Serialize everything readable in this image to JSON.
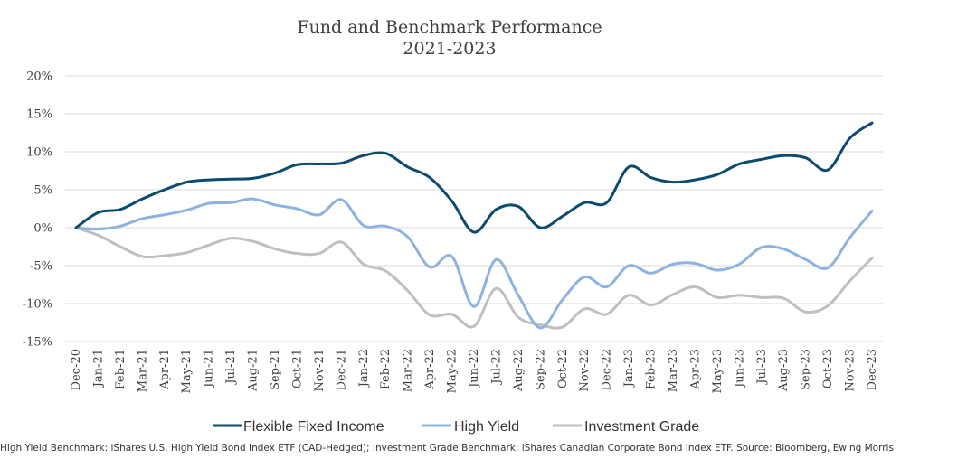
{
  "chart_data": {
    "type": "line",
    "title": "Fund and Benchmark Performance",
    "subtitle": "2021-2023",
    "xlabel": "",
    "ylabel": "",
    "ylim": [
      -15,
      20
    ],
    "y_ticks": [
      20,
      15,
      10,
      5,
      0,
      -5,
      -10,
      -15
    ],
    "y_tick_labels": [
      "20%",
      "15%",
      "10%",
      "5%",
      "0%",
      "-5%",
      "-10%",
      "-15%"
    ],
    "grid": true,
    "legend_position": "bottom",
    "categories": [
      "Dec-20",
      "Jan-21",
      "Feb-21",
      "Mar-21",
      "Apr-21",
      "May-21",
      "Jun-21",
      "Jul-21",
      "Aug-21",
      "Sep-21",
      "Oct-21",
      "Nov-21",
      "Dec-21",
      "Jan-22",
      "Feb-22",
      "Mar-22",
      "Apr-22",
      "May-22",
      "Jun-22",
      "Jul-22",
      "Aug-22",
      "Sep-22",
      "Oct-22",
      "Nov-22",
      "Dec-22",
      "Jan-23",
      "Feb-23",
      "Mar-23",
      "Apr-23",
      "May-23",
      "Jun-23",
      "Jul-23",
      "Aug-23",
      "Sep-23",
      "Oct-23",
      "Nov-23",
      "Dec-23"
    ],
    "series": [
      {
        "name": "Flexible Fixed Income",
        "color": "#0c4a6e",
        "values": [
          0,
          2.0,
          2.4,
          3.8,
          5.0,
          6.0,
          6.3,
          6.4,
          6.5,
          7.2,
          8.3,
          8.4,
          8.5,
          9.5,
          9.8,
          8.0,
          6.6,
          3.5,
          -0.6,
          2.4,
          2.8,
          0,
          1.5,
          3.3,
          3.3,
          8.0,
          6.6,
          6.0,
          6.3,
          7.0,
          8.4,
          9.0,
          9.5,
          9.2,
          7.6,
          11.8,
          13.8
        ]
      },
      {
        "name": "High Yield",
        "color": "#8cb3e0",
        "values": [
          0,
          -0.2,
          0.2,
          1.2,
          1.7,
          2.3,
          3.2,
          3.3,
          3.8,
          3.0,
          2.5,
          1.7,
          3.7,
          0.3,
          0.2,
          -1.2,
          -5.2,
          -3.8,
          -10.4,
          -4.2,
          -8.9,
          -13.2,
          -9.5,
          -6.5,
          -7.8,
          -5.0,
          -6.0,
          -4.8,
          -4.7,
          -5.6,
          -4.8,
          -2.6,
          -2.8,
          -4.2,
          -5.3,
          -1.3,
          2.2
        ]
      },
      {
        "name": "Investment Grade",
        "color": "#bfbfbf",
        "values": [
          0,
          -1.0,
          -2.5,
          -3.8,
          -3.7,
          -3.3,
          -2.3,
          -1.4,
          -1.8,
          -2.8,
          -3.4,
          -3.4,
          -1.9,
          -4.8,
          -5.7,
          -8.3,
          -11.5,
          -11.4,
          -13.0,
          -8.0,
          -11.8,
          -12.8,
          -13.1,
          -10.7,
          -11.4,
          -8.9,
          -10.2,
          -8.8,
          -7.8,
          -9.2,
          -8.9,
          -9.2,
          -9.3,
          -11.1,
          -10.3,
          -7.0,
          -4.0
        ]
      }
    ],
    "source_note": "High Yield Benchmark: iShares U.S. High Yield Bond Index ETF (CAD-Hedged); Investment Grade Benchmark: iShares Canadian Corporate Bond Index ETF.  Source: Bloomberg, Ewing Morris"
  }
}
